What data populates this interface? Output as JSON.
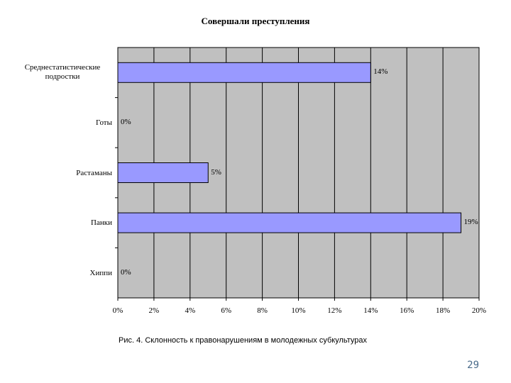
{
  "chart_data": {
    "type": "bar",
    "orientation": "horizontal",
    "title": "Совершали преступления",
    "categories": [
      "Среднестатистические подростки",
      "Готы",
      "Растаманы",
      "Панки",
      "Хиппи"
    ],
    "values": [
      14,
      0,
      5,
      19,
      0
    ],
    "value_labels": [
      "14%",
      "0%",
      "5%",
      "19%",
      "0%"
    ],
    "xlim": [
      0,
      20
    ],
    "ticks": [
      "0%",
      "2%",
      "4%",
      "6%",
      "8%",
      "10%",
      "12%",
      "14%",
      "16%",
      "18%",
      "20%"
    ],
    "grid": "vertical",
    "colors": {
      "bar": "#9999ff",
      "plot_bg": "#c0c0c0",
      "border": "#000000"
    }
  },
  "caption": "Рис. 4. Склонность к правонарушениям в молодежных субкультурах",
  "page_number": "29"
}
